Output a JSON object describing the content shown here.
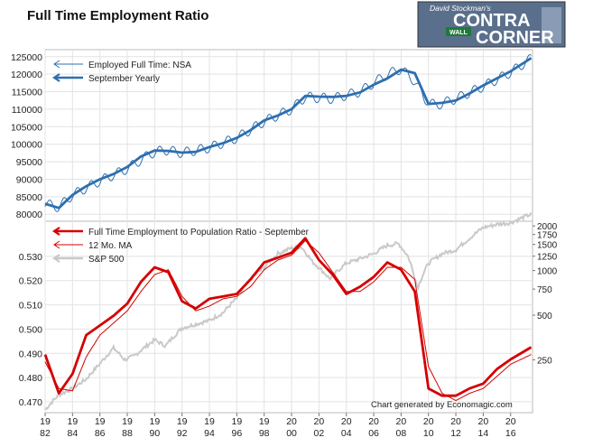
{
  "logo": {
    "line1": "David Stockman's",
    "line2": "CONTRA",
    "line3": "CORNER",
    "sign": "WALL"
  },
  "credit": "Chart generated by Economagic.com",
  "colors": {
    "blue": "#2e6fae",
    "red": "#d40000",
    "gray": "#c9c9c9",
    "grid": "#e3e3e3"
  },
  "chart_data": [
    {
      "type": "line",
      "title": "Full Time Employment Ratio",
      "ylim": [
        78000,
        127000
      ],
      "yticks": [
        80000,
        85000,
        90000,
        95000,
        100000,
        105000,
        110000,
        115000,
        120000,
        125000
      ],
      "ytick_labels": [
        "80000",
        "85000",
        "90000",
        "95000",
        "100000",
        "105000",
        "110000",
        "115000",
        "120000",
        "125000"
      ],
      "legend_position": "top-left",
      "series": [
        {
          "name": "Employed Full Time: NSA",
          "monthly": true,
          "seasonal_amplitude": 1400,
          "x": [
            1982.0,
            1983.0,
            1984.0,
            1986.0,
            1988.0,
            1989.7,
            1990.7,
            1992.0,
            1994.0,
            1996.0,
            1998.0,
            2000.0,
            2001.0,
            2003.0,
            2005.0,
            2007.0,
            2008.0,
            2009.0,
            2009.7,
            2010.5,
            2012.0,
            2014.0,
            2016.0,
            2017.5
          ],
          "y": [
            83000,
            82000,
            85500,
            89500,
            93000,
            97300,
            98400,
            97500,
            99000,
            101800,
            106500,
            110000,
            113500,
            113000,
            115000,
            120000,
            121500,
            118000,
            113000,
            111000,
            113000,
            116500,
            120500,
            124500
          ]
        },
        {
          "name": "September Yearly",
          "x": [
            1982.0,
            1983.0,
            1984.0,
            1985.0,
            1986.0,
            1987.0,
            1988.0,
            1989.0,
            1990.0,
            1991.0,
            1992.0,
            1993.0,
            1994.0,
            1995.0,
            1996.0,
            1997.0,
            1998.0,
            1999.0,
            2000.0,
            2001.0,
            2002.0,
            2003.0,
            2004.0,
            2005.0,
            2006.0,
            2007.0,
            2008.0,
            2009.0,
            2010.0,
            2011.0,
            2012.0,
            2013.0,
            2014.0,
            2015.0,
            2016.0,
            2017.5
          ],
          "y": [
            83000,
            81800,
            85500,
            88000,
            90000,
            91500,
            93500,
            96500,
            98200,
            98100,
            97600,
            97800,
            99200,
            100300,
            101800,
            104000,
            106800,
            108200,
            110000,
            113800,
            113600,
            113500,
            113800,
            114800,
            117000,
            118800,
            121300,
            120300,
            111500,
            111800,
            112500,
            114500,
            116800,
            118800,
            120800,
            124600
          ]
        }
      ]
    },
    {
      "type": "line",
      "xlabel": "",
      "xlim": [
        1982.0,
        2017.6
      ],
      "xticks": [
        1982,
        1984,
        1986,
        1988,
        1990,
        1992,
        1994,
        1996,
        1998,
        2000,
        2002,
        2004,
        2006,
        2008,
        2010,
        2012,
        2014,
        2016
      ],
      "xtick_labels": [
        [
          "19",
          "82"
        ],
        [
          "19",
          "84"
        ],
        [
          "19",
          "86"
        ],
        [
          "19",
          "88"
        ],
        [
          "19",
          "90"
        ],
        [
          "19",
          "92"
        ],
        [
          "19",
          "94"
        ],
        [
          "19",
          "96"
        ],
        [
          "19",
          "98"
        ],
        [
          "20",
          "00"
        ],
        [
          "20",
          "02"
        ],
        [
          "20",
          "04"
        ],
        [
          "20",
          "06"
        ],
        [
          "20",
          "08"
        ],
        [
          "20",
          "10"
        ],
        [
          "20",
          "12"
        ],
        [
          "20",
          "14"
        ],
        [
          "20",
          "16"
        ]
      ],
      "ylim": [
        0.4655,
        0.5445
      ],
      "yticks": [
        0.47,
        0.48,
        0.49,
        0.5,
        0.51,
        0.52,
        0.53
      ],
      "ytick_labels": [
        "0.470",
        "0.480",
        "0.490",
        "0.500",
        "0.510",
        "0.520",
        "0.530"
      ],
      "y2_scale": "log",
      "y2lim": [
        110,
        2150
      ],
      "y2ticks": [
        250,
        500,
        750,
        1000,
        1250,
        1500,
        1750,
        2000
      ],
      "y2tick_labels": [
        "250",
        "500",
        "750",
        "1000",
        "1250",
        "1500",
        "1750",
        "2000"
      ],
      "legend_position": "top-left",
      "series": [
        {
          "name": "Full Time Employment to Population Ratio - September",
          "axis": "left",
          "x": [
            1982.0,
            1983.0,
            1984.0,
            1985.0,
            1986.0,
            1987.0,
            1988.0,
            1989.0,
            1990.0,
            1991.0,
            1992.0,
            1993.0,
            1994.0,
            1995.0,
            1996.0,
            1997.0,
            1998.0,
            1999.0,
            2000.0,
            2001.0,
            2002.0,
            2003.0,
            2004.0,
            2005.0,
            2006.0,
            2007.0,
            2008.0,
            2009.0,
            2010.0,
            2011.0,
            2012.0,
            2013.0,
            2014.0,
            2015.0,
            2016.0,
            2017.5
          ],
          "y": [
            0.4895,
            0.4735,
            0.4815,
            0.4975,
            0.5015,
            0.5055,
            0.5105,
            0.5195,
            0.5255,
            0.5235,
            0.5115,
            0.5085,
            0.5125,
            0.5135,
            0.5145,
            0.5205,
            0.5275,
            0.5295,
            0.5315,
            0.5375,
            0.5285,
            0.5225,
            0.5145,
            0.5175,
            0.5215,
            0.5275,
            0.5245,
            0.5155,
            0.4755,
            0.4725,
            0.4725,
            0.4755,
            0.4775,
            0.4835,
            0.4875,
            0.4925
          ]
        },
        {
          "name": "12 Mo. MA",
          "axis": "left",
          "x": [
            1982.0,
            1983.0,
            1984.0,
            1985.0,
            1986.0,
            1987.0,
            1988.0,
            1989.0,
            1990.0,
            1991.0,
            1992.0,
            1993.0,
            1994.0,
            1995.0,
            1996.0,
            1997.0,
            1998.0,
            1999.0,
            2000.0,
            2001.0,
            2002.0,
            2003.0,
            2004.0,
            2005.0,
            2006.0,
            2007.0,
            2008.0,
            2009.0,
            2010.0,
            2011.0,
            2012.0,
            2013.0,
            2014.0,
            2015.0,
            2016.0,
            2017.5
          ],
          "y": [
            0.4865,
            0.4755,
            0.4745,
            0.4885,
            0.4975,
            0.5025,
            0.5075,
            0.5155,
            0.5225,
            0.5245,
            0.5135,
            0.5075,
            0.5095,
            0.5125,
            0.5135,
            0.5175,
            0.5245,
            0.5285,
            0.5305,
            0.5365,
            0.5315,
            0.5235,
            0.5155,
            0.5155,
            0.5195,
            0.5255,
            0.5255,
            0.5205,
            0.4845,
            0.4735,
            0.4705,
            0.4735,
            0.4755,
            0.4805,
            0.4855,
            0.4895
          ]
        },
        {
          "name": "S&P 500",
          "axis": "right",
          "x": [
            1982.0,
            1983.0,
            1984.0,
            1985.0,
            1986.0,
            1987.0,
            1987.8,
            1988.5,
            1990.0,
            1990.8,
            1992.0,
            1994.0,
            1995.0,
            1996.0,
            1997.0,
            1998.0,
            1999.0,
            2000.0,
            2000.7,
            2001.5,
            2002.8,
            2004.0,
            2005.0,
            2006.0,
            2007.0,
            2007.8,
            2008.5,
            2009.2,
            2010.0,
            2011.0,
            2012.0,
            2013.0,
            2014.0,
            2015.0,
            2016.0,
            2017.5
          ],
          "y": [
            115,
            145,
            160,
            185,
            235,
            300,
            250,
            265,
            340,
            310,
            410,
            460,
            520,
            650,
            870,
            1050,
            1300,
            1420,
            1450,
            1150,
            880,
            1120,
            1200,
            1300,
            1480,
            1520,
            1250,
            760,
            1120,
            1300,
            1380,
            1650,
            1950,
            2050,
            2100,
            2400
          ]
        }
      ]
    }
  ]
}
